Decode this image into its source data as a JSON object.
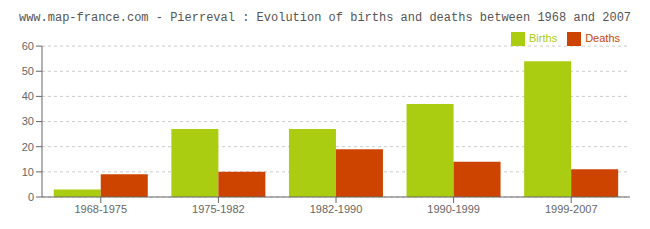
{
  "chart_data": {
    "type": "bar",
    "title": "www.map-france.com - Pierreval : Evolution of births and deaths between 1968 and 2007",
    "categories": [
      "1968-1975",
      "1975-1982",
      "1982-1990",
      "1990-1999",
      "1999-2007"
    ],
    "series": [
      {
        "name": "Births",
        "color": "#aacc11",
        "values": [
          3,
          27,
          27,
          37,
          54
        ]
      },
      {
        "name": "Deaths",
        "color": "#cc4400",
        "values": [
          9,
          10,
          19,
          14,
          11
        ]
      }
    ],
    "ylim": [
      0,
      60
    ],
    "yticks": [
      0,
      10,
      20,
      30,
      40,
      50,
      60
    ],
    "grid": true,
    "legend": "upper right"
  }
}
